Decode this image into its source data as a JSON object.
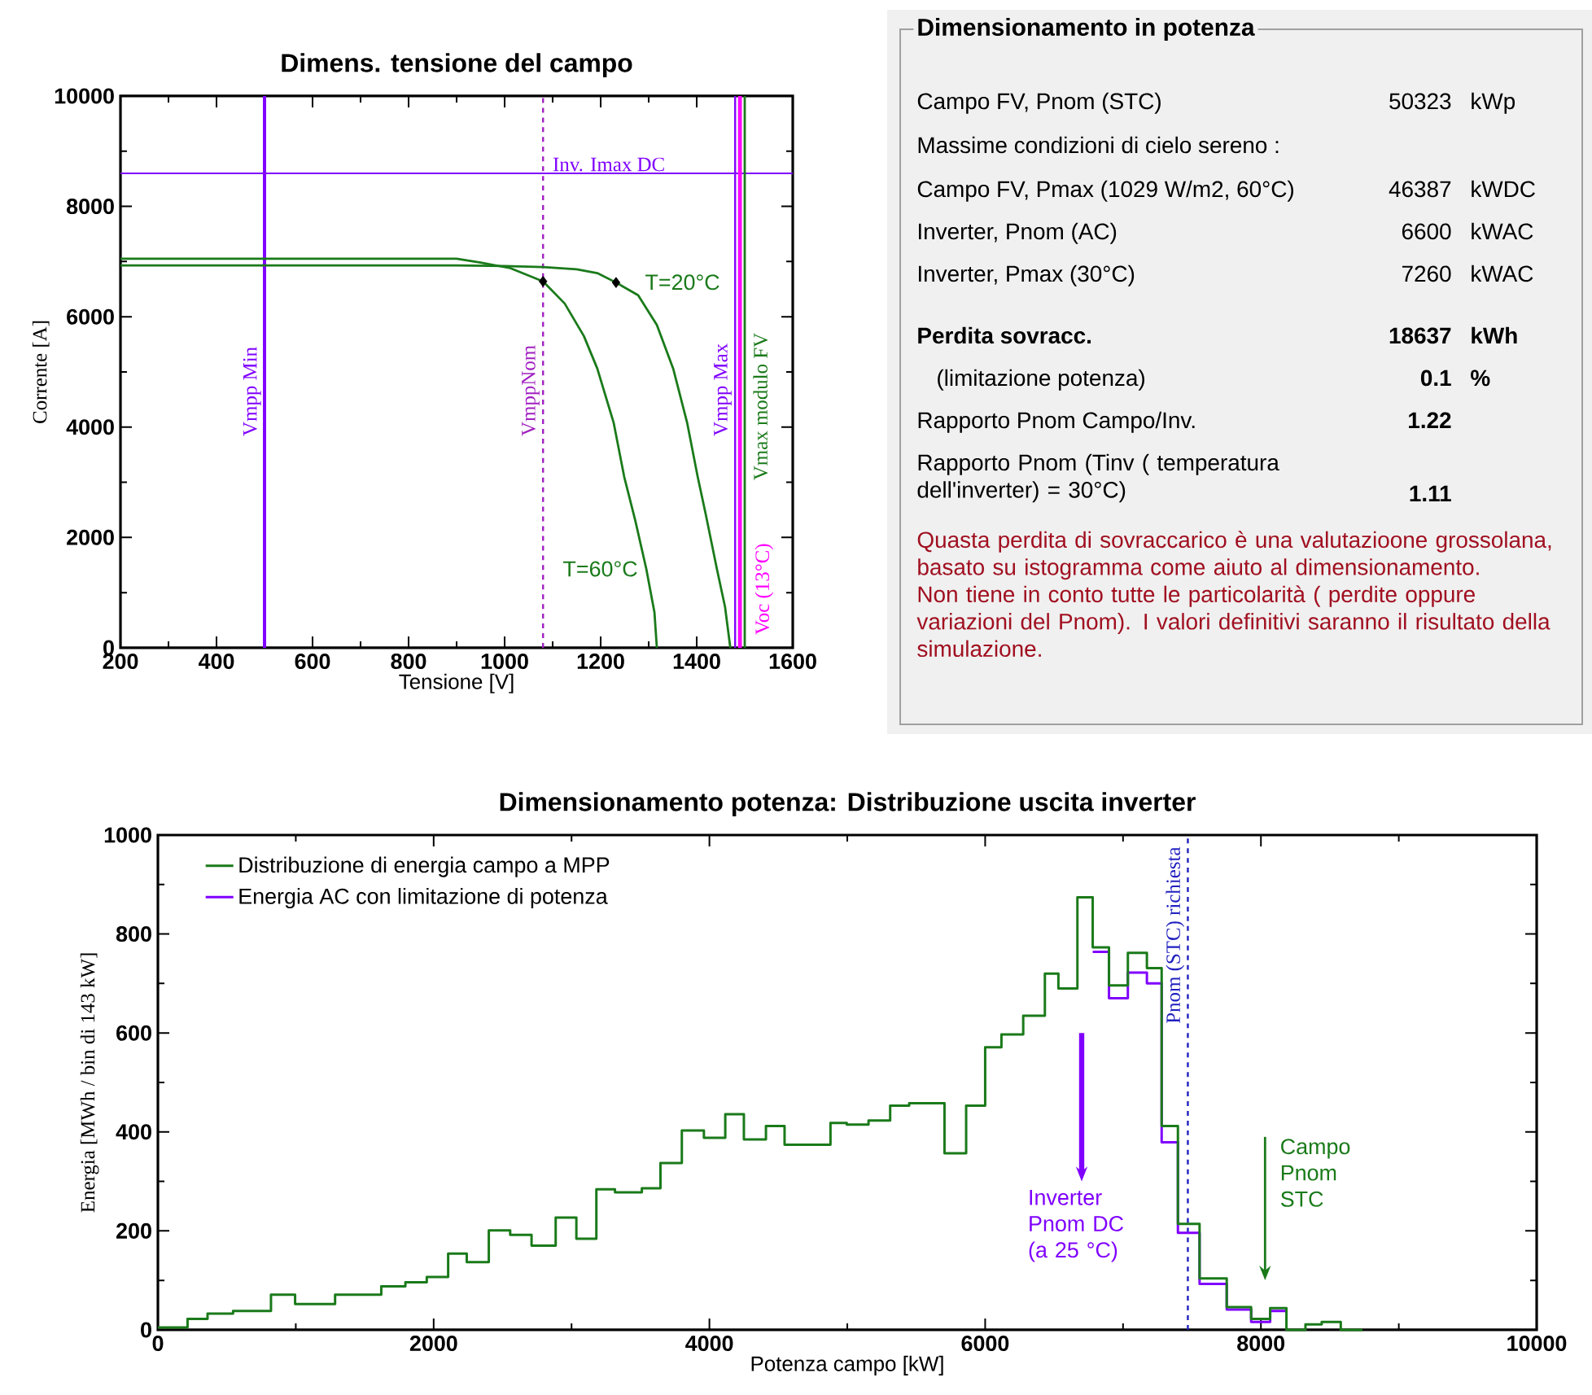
{
  "chart_data": [
    {
      "type": "line",
      "title": "Dimens. tensione del campo",
      "xlabel": "Tensione [V]",
      "ylabel": "Corrente [A]",
      "xlim": [
        200,
        1600
      ],
      "xticks": [
        200,
        400,
        600,
        800,
        1000,
        1200,
        1400,
        1600
      ],
      "ylim": [
        0,
        10000
      ],
      "yticks": [
        0,
        2000,
        4000,
        6000,
        8000,
        10000
      ],
      "series": [
        {
          "name": "T=20°C",
          "color": "#1a7a1a",
          "x": [
            200,
            600,
            900,
            1000,
            1080,
            1150,
            1193,
            1232,
            1278,
            1317,
            1351,
            1380,
            1402,
            1419,
            1442,
            1459,
            1470
          ],
          "values": [
            6930,
            6930,
            6930,
            6920,
            6900,
            6860,
            6790,
            6620,
            6390,
            5850,
            5060,
            4080,
            3100,
            2410,
            1430,
            740,
            0
          ]
        },
        {
          "name": "T=60°C",
          "color": "#1a7a1a",
          "x": [
            200,
            600,
            900,
            950,
            1012,
            1080,
            1125,
            1165,
            1193,
            1227,
            1249,
            1272,
            1295,
            1312,
            1317
          ],
          "values": [
            7050,
            7050,
            7050,
            6980,
            6880,
            6640,
            6240,
            5650,
            5060,
            4080,
            3100,
            2310,
            1430,
            640,
            0
          ]
        },
        {
          "type": "scatter",
          "color": "#000000",
          "marker": "diamond",
          "x": [
            1080,
            1232
          ],
          "values": [
            6640,
            6620
          ]
        }
      ],
      "ref_lines": [
        {
          "axis": "x",
          "value": 500,
          "label": "Vmpp Min",
          "color": "#8000ff"
        },
        {
          "axis": "x",
          "value": 1080,
          "label": "VmppNom",
          "color": "#a020c0",
          "line_style": "dashed"
        },
        {
          "axis": "y",
          "value": 8600,
          "label": "Inv. Imax DC",
          "color": "#8000ff"
        },
        {
          "axis": "x",
          "value": 1480,
          "label": "Vmpp Max",
          "color": "#8000ff"
        },
        {
          "axis": "x",
          "value": 1490,
          "label": "Voc (13°C)",
          "color": "#ff00ff"
        },
        {
          "axis": "x",
          "value": 1500,
          "label": "Vmax modulo FV",
          "color": "#1a7a1a"
        }
      ]
    },
    {
      "type": "other",
      "title": "Dimensionamento in potenza",
      "annotations": [
        "Campo FV, Pnom (STC)",
        "50323",
        "kWp",
        "Massime condizioni di cielo sereno :",
        "Campo FV, Pmax (1029 W/m2, 60°C)",
        "46387",
        "kWDC",
        "Inverter, Pnom (AC)",
        "6600",
        "kWAC",
        "Inverter, Pmax (30°C)",
        "7260",
        "kWAC",
        "Perdita sovracc.",
        "18637",
        "kWh",
        "(limitazione potenza)",
        "0.1",
        "%",
        "Rapporto Pnom Campo/Inv.",
        "1.22",
        "Rapporto Pnom (Tinv ( temperatura dell'inverter) = 30°C)",
        "1.11",
        "Quasta perdita di sovraccarico è una valutazioone grossolana, basato su istogramma come aiuto al dimensionamento. Non tiene in conto tutte le particolarità ( perdite oppure variazioni del Pnom). I valori definitivi saranno il risultato della simulazione."
      ]
    },
    {
      "type": "histogram",
      "title": "Dimensionamento potenza: Distribuzione uscita inverter",
      "xlabel": "Potenza campo [kW]",
      "ylabel": "Energia [MWh / bin di 143 kW]",
      "xlim": [
        0,
        10000
      ],
      "xticks": [
        0,
        2000,
        4000,
        6000,
        8000,
        10000
      ],
      "ylim": [
        0,
        1000
      ],
      "yticks": [
        0,
        200,
        400,
        600,
        800,
        1000
      ],
      "legend": "top left",
      "bins": [
        0,
        215,
        360,
        545,
        682,
        820,
        995,
        1140,
        1285,
        1452,
        1620,
        1795,
        1950,
        2105,
        2240,
        2400,
        2555,
        2710,
        2885,
        3035,
        3180,
        3315,
        3510,
        3645,
        3800,
        3960,
        4115,
        4250,
        4410,
        4545,
        4711,
        4878,
        4996,
        5154,
        5311,
        5449,
        5577,
        5705,
        5862,
        6000,
        6118,
        6276,
        6433,
        6531,
        6669,
        6780,
        6898,
        7035,
        7173,
        7280,
        7398,
        7555,
        7752,
        7929,
        8067,
        8185,
        8323,
        8441,
        8579,
        8736
      ],
      "series": [
        {
          "name": "Distribuzione di energia campo a MPP",
          "color": "#1a7a1a",
          "values": [
            5,
            22,
            33,
            38,
            38,
            71,
            52,
            52,
            71,
            71,
            88,
            96,
            107,
            154,
            137,
            201,
            192,
            170,
            227,
            184,
            284,
            278,
            286,
            337,
            403,
            388,
            436,
            385,
            412,
            374,
            374,
            418,
            415,
            423,
            453,
            458,
            458,
            357,
            453,
            571,
            597,
            635,
            720,
            690,
            874,
            773,
            696,
            762,
            731,
            412,
            214,
            104,
            46,
            22,
            44,
            0,
            11,
            16,
            0
          ]
        },
        {
          "name": "Energia AC con limitazione di potenza",
          "type": "step",
          "color": "#8000ff",
          "x": [
            6780,
            6898,
            7035,
            7173,
            7280,
            7398,
            7555,
            7752,
            7929,
            8067,
            8185
          ],
          "values": [
            764,
            670,
            722,
            700,
            379,
            196,
            93,
            41,
            16,
            38,
            38
          ]
        }
      ],
      "ref_lines": [
        {
          "axis": "x",
          "value": 7470,
          "label": "Pnom (STC) richiesta",
          "color": "#2020c0",
          "line_style": "dashed"
        }
      ],
      "annotations": [
        "Inverter Pnom DC (a 25 °C)",
        "Campo Pnom STC"
      ]
    }
  ]
}
